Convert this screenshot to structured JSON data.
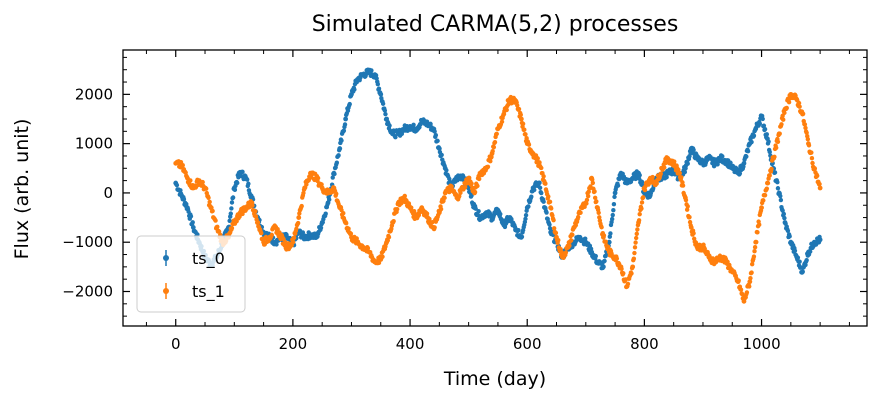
{
  "chart_data": {
    "type": "scatter",
    "title": "Simulated CARMA(5,2) processes",
    "xlabel": "Time (day)",
    "ylabel": "Flux (arb. unit)",
    "xlim": [
      -90,
      1180
    ],
    "ylim": [
      -2700,
      2900
    ],
    "xticks": [
      0,
      200,
      400,
      600,
      800,
      1000
    ],
    "xtick_labels": [
      "0",
      "200",
      "400",
      "600",
      "800",
      "1000"
    ],
    "yticks": [
      -2000,
      -1000,
      0,
      1000,
      2000
    ],
    "ytick_labels": [
      "−2000",
      "−1000",
      "0",
      "1000",
      "2000"
    ],
    "grid": false,
    "legend_position": "lower-left",
    "series": [
      {
        "name": "ts_0",
        "color": "#1f77b4",
        "points": [
          [
            0,
            200
          ],
          [
            10,
            -50
          ],
          [
            20,
            -300
          ],
          [
            30,
            -700
          ],
          [
            40,
            -1000
          ],
          [
            50,
            -1300
          ],
          [
            60,
            -1450
          ],
          [
            70,
            -1300
          ],
          [
            80,
            -1000
          ],
          [
            90,
            -700
          ],
          [
            100,
            100
          ],
          [
            110,
            420
          ],
          [
            120,
            300
          ],
          [
            130,
            -100
          ],
          [
            140,
            -500
          ],
          [
            150,
            -800
          ],
          [
            160,
            -900
          ],
          [
            170,
            -1000
          ],
          [
            180,
            -900
          ],
          [
            190,
            -900
          ],
          [
            200,
            -1050
          ],
          [
            210,
            -800
          ],
          [
            220,
            -900
          ],
          [
            230,
            -850
          ],
          [
            240,
            -900
          ],
          [
            250,
            -600
          ],
          [
            260,
            -200
          ],
          [
            270,
            400
          ],
          [
            280,
            900
          ],
          [
            290,
            1500
          ],
          [
            300,
            2000
          ],
          [
            310,
            2300
          ],
          [
            320,
            2400
          ],
          [
            330,
            2450
          ],
          [
            340,
            2400
          ],
          [
            350,
            2000
          ],
          [
            360,
            1500
          ],
          [
            370,
            1200
          ],
          [
            380,
            1200
          ],
          [
            390,
            1300
          ],
          [
            400,
            1350
          ],
          [
            410,
            1300
          ],
          [
            420,
            1450
          ],
          [
            430,
            1400
          ],
          [
            440,
            1300
          ],
          [
            450,
            900
          ],
          [
            460,
            500
          ],
          [
            470,
            100
          ],
          [
            480,
            300
          ],
          [
            490,
            350
          ],
          [
            500,
            100
          ],
          [
            510,
            -300
          ],
          [
            520,
            -500
          ],
          [
            530,
            -400
          ],
          [
            540,
            -500
          ],
          [
            550,
            -350
          ],
          [
            560,
            -650
          ],
          [
            570,
            -500
          ],
          [
            580,
            -750
          ],
          [
            590,
            -900
          ],
          [
            600,
            -300
          ],
          [
            610,
            100
          ],
          [
            620,
            200
          ],
          [
            630,
            -300
          ],
          [
            640,
            -800
          ],
          [
            650,
            -1000
          ],
          [
            660,
            -1300
          ],
          [
            670,
            -1100
          ],
          [
            680,
            -1000
          ],
          [
            690,
            -900
          ],
          [
            700,
            -1000
          ],
          [
            710,
            -1200
          ],
          [
            720,
            -1400
          ],
          [
            730,
            -1500
          ],
          [
            740,
            -1000
          ],
          [
            750,
            0
          ],
          [
            760,
            400
          ],
          [
            770,
            200
          ],
          [
            780,
            300
          ],
          [
            790,
            400
          ],
          [
            800,
            0
          ],
          [
            810,
            -50
          ],
          [
            820,
            300
          ],
          [
            830,
            300
          ],
          [
            840,
            400
          ],
          [
            850,
            450
          ],
          [
            860,
            300
          ],
          [
            870,
            500
          ],
          [
            880,
            900
          ],
          [
            890,
            700
          ],
          [
            900,
            600
          ],
          [
            910,
            700
          ],
          [
            920,
            600
          ],
          [
            930,
            700
          ],
          [
            940,
            650
          ],
          [
            950,
            500
          ],
          [
            960,
            400
          ],
          [
            970,
            600
          ],
          [
            980,
            1000
          ],
          [
            990,
            1300
          ],
          [
            1000,
            1550
          ],
          [
            1010,
            1100
          ],
          [
            1020,
            500
          ],
          [
            1030,
            0
          ],
          [
            1040,
            -600
          ],
          [
            1050,
            -1000
          ],
          [
            1060,
            -1300
          ],
          [
            1070,
            -1600
          ],
          [
            1080,
            -1200
          ],
          [
            1090,
            -1000
          ],
          [
            1100,
            -950
          ]
        ]
      },
      {
        "name": "ts_1",
        "color": "#ff7f0e",
        "points": [
          [
            0,
            600
          ],
          [
            10,
            550
          ],
          [
            20,
            300
          ],
          [
            30,
            100
          ],
          [
            40,
            250
          ],
          [
            50,
            100
          ],
          [
            60,
            -300
          ],
          [
            70,
            -700
          ],
          [
            80,
            -1000
          ],
          [
            90,
            -900
          ],
          [
            100,
            -600
          ],
          [
            110,
            -400
          ],
          [
            120,
            -300
          ],
          [
            130,
            -200
          ],
          [
            140,
            -600
          ],
          [
            150,
            -1000
          ],
          [
            160,
            -900
          ],
          [
            170,
            -700
          ],
          [
            180,
            -900
          ],
          [
            190,
            -1100
          ],
          [
            200,
            -1000
          ],
          [
            210,
            -500
          ],
          [
            220,
            100
          ],
          [
            230,
            400
          ],
          [
            240,
            300
          ],
          [
            250,
            100
          ],
          [
            260,
            0
          ],
          [
            270,
            100
          ],
          [
            280,
            -300
          ],
          [
            290,
            -600
          ],
          [
            300,
            -900
          ],
          [
            310,
            -1000
          ],
          [
            320,
            -1100
          ],
          [
            330,
            -1200
          ],
          [
            340,
            -1400
          ],
          [
            350,
            -1350
          ],
          [
            360,
            -1000
          ],
          [
            370,
            -600
          ],
          [
            380,
            -200
          ],
          [
            390,
            -100
          ],
          [
            400,
            -300
          ],
          [
            410,
            -500
          ],
          [
            420,
            -300
          ],
          [
            430,
            -500
          ],
          [
            440,
            -700
          ],
          [
            450,
            -400
          ],
          [
            460,
            0
          ],
          [
            470,
            100
          ],
          [
            480,
            -100
          ],
          [
            490,
            100
          ],
          [
            500,
            300
          ],
          [
            510,
            0
          ],
          [
            520,
            400
          ],
          [
            530,
            500
          ],
          [
            540,
            800
          ],
          [
            550,
            1300
          ],
          [
            560,
            1600
          ],
          [
            570,
            1900
          ],
          [
            580,
            1850
          ],
          [
            590,
            1500
          ],
          [
            600,
            1000
          ],
          [
            610,
            800
          ],
          [
            620,
            600
          ],
          [
            630,
            200
          ],
          [
            640,
            -300
          ],
          [
            650,
            -900
          ],
          [
            660,
            -1300
          ],
          [
            670,
            -1100
          ],
          [
            680,
            -700
          ],
          [
            690,
            -400
          ],
          [
            700,
            -200
          ],
          [
            710,
            300
          ],
          [
            720,
            -300
          ],
          [
            730,
            -900
          ],
          [
            740,
            -1200
          ],
          [
            750,
            -1300
          ],
          [
            760,
            -1500
          ],
          [
            770,
            -1900
          ],
          [
            780,
            -1500
          ],
          [
            790,
            -600
          ],
          [
            800,
            100
          ],
          [
            810,
            300
          ],
          [
            820,
            200
          ],
          [
            830,
            500
          ],
          [
            840,
            700
          ],
          [
            850,
            600
          ],
          [
            860,
            400
          ],
          [
            870,
            -100
          ],
          [
            880,
            -700
          ],
          [
            890,
            -1100
          ],
          [
            900,
            -1100
          ],
          [
            910,
            -1300
          ],
          [
            920,
            -1400
          ],
          [
            930,
            -1300
          ],
          [
            940,
            -1400
          ],
          [
            950,
            -1600
          ],
          [
            960,
            -1800
          ],
          [
            970,
            -2200
          ],
          [
            980,
            -1800
          ],
          [
            990,
            -1000
          ],
          [
            1000,
            -300
          ],
          [
            1010,
            200
          ],
          [
            1020,
            700
          ],
          [
            1030,
            1200
          ],
          [
            1040,
            1700
          ],
          [
            1050,
            2000
          ],
          [
            1060,
            1900
          ],
          [
            1070,
            1600
          ],
          [
            1080,
            1000
          ],
          [
            1090,
            500
          ],
          [
            1100,
            100
          ]
        ]
      }
    ]
  }
}
